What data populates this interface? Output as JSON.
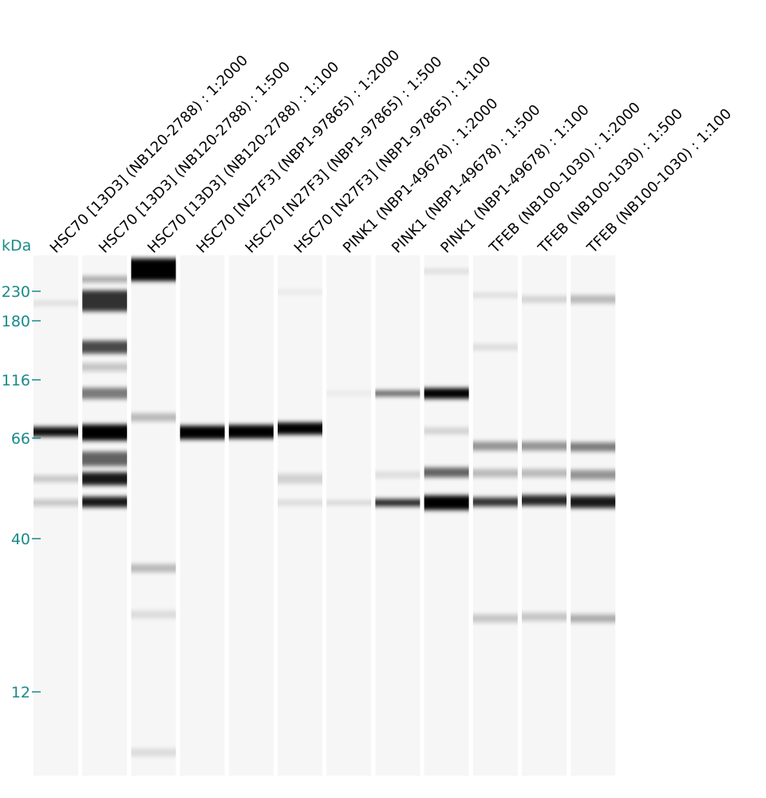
{
  "axis": {
    "unit": "kDa",
    "markers": [
      "230",
      "180",
      "116",
      "66",
      "40",
      "12"
    ]
  },
  "lanes": [
    "HSC70 [13D3] (NB120-2788) : 1:2000",
    "HSC70 [13D3] (NB120-2788) : 1:500",
    "HSC70 [13D3] (NB120-2788) : 1:100",
    "HSC70 [N27F3] (NBP1-97865) : 1:2000",
    "HSC70 [N27F3] (NBP1-97865) : 1:500",
    "HSC70 [N27F3] (NBP1-97865) : 1:100",
    "PINK1 (NBP1-49678) : 1:2000",
    "PINK1 (NBP1-49678) : 1:500",
    "PINK1 (NBP1-49678) : 1:100",
    "TFEB (NB100-1030) : 1:2000",
    "TFEB (NB100-1030) : 1:500",
    "TFEB (NB100-1030) : 1:100"
  ]
}
